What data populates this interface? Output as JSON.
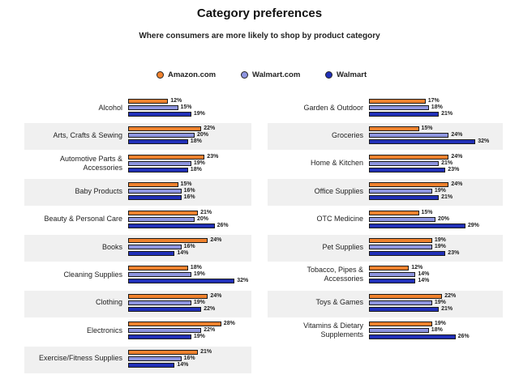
{
  "header": {
    "title": "Category preferences",
    "subtitle": "Where consumers are more likely to shop by product category"
  },
  "legend": [
    {
      "name": "Amazon.com",
      "color": "#f0822e"
    },
    {
      "name": "Walmart.com",
      "color": "#8e95e0"
    },
    {
      "name": "Walmart",
      "color": "#2130b8"
    }
  ],
  "chart_data": {
    "type": "bar",
    "orientation": "horizontal",
    "unit": "%",
    "series_names": [
      "Amazon.com",
      "Walmart.com",
      "Walmart"
    ],
    "left_panel": [
      {
        "category": "Alcohol",
        "values": [
          12,
          15,
          19
        ]
      },
      {
        "category": "Arts, Crafts & Sewing",
        "values": [
          22,
          20,
          18
        ]
      },
      {
        "category": "Automotive Parts & Accessories",
        "values": [
          23,
          19,
          18
        ]
      },
      {
        "category": "Baby Products",
        "values": [
          15,
          16,
          16
        ]
      },
      {
        "category": "Beauty & Personal Care",
        "values": [
          21,
          20,
          26
        ]
      },
      {
        "category": "Books",
        "values": [
          24,
          16,
          14
        ]
      },
      {
        "category": "Cleaning Supplies",
        "values": [
          18,
          19,
          32
        ]
      },
      {
        "category": "Clothing",
        "values": [
          24,
          19,
          22
        ]
      },
      {
        "category": "Electronics",
        "values": [
          28,
          22,
          19
        ]
      },
      {
        "category": "Exercise/Fitness Supplies",
        "values": [
          21,
          16,
          14
        ]
      }
    ],
    "right_panel": [
      {
        "category": "Garden & Outdoor",
        "values": [
          17,
          18,
          21
        ]
      },
      {
        "category": "Groceries",
        "values": [
          15,
          24,
          32
        ]
      },
      {
        "category": "Home & Kitchen",
        "values": [
          24,
          21,
          23
        ]
      },
      {
        "category": "Office Supplies",
        "values": [
          24,
          19,
          21
        ]
      },
      {
        "category": "OTC Medicine",
        "values": [
          15,
          20,
          29
        ]
      },
      {
        "category": "Pet Supplies",
        "values": [
          19,
          19,
          23
        ]
      },
      {
        "category": "Tobacco, Pipes & Accessories",
        "values": [
          12,
          14,
          14
        ]
      },
      {
        "category": "Toys & Games",
        "values": [
          22,
          19,
          21
        ]
      },
      {
        "category": "Vitamins & Dietary Supplements",
        "values": [
          19,
          18,
          26
        ]
      }
    ]
  }
}
